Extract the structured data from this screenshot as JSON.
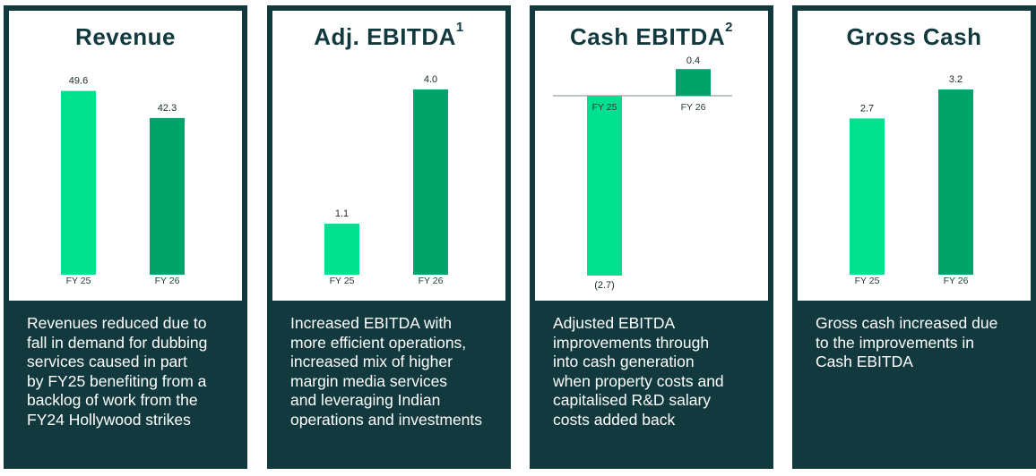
{
  "colors": {
    "panel": "#123a3e",
    "fy25": "#00e08e",
    "fy26": "#00a36a",
    "zero_line": "#7a8a8c"
  },
  "chart_data": [
    {
      "type": "bar",
      "title": "Revenue",
      "superscript": "",
      "categories": [
        "FY 25",
        "FY 26"
      ],
      "values": [
        49.6,
        42.3
      ],
      "value_labels": [
        "49.6",
        "42.3"
      ],
      "ylim": [
        0,
        50
      ],
      "zero_line": false,
      "description": "Revenues reduced due to\nfall in demand for dubbing\nservices caused in part\nby FY25 benefiting from a\nbacklog of work from the\nFY24 Hollywood strikes"
    },
    {
      "type": "bar",
      "title": "Adj. EBITDA",
      "superscript": "1",
      "categories": [
        "FY 25",
        "FY 26"
      ],
      "values": [
        1.1,
        4.0
      ],
      "value_labels": [
        "1.1",
        "4.0"
      ],
      "ylim": [
        0,
        4.0
      ],
      "zero_line": false,
      "description": "Increased EBITDA with\nmore efficient operations,\nincreased mix of higher\nmargin media services\nand leveraging Indian\noperations and investments"
    },
    {
      "type": "bar",
      "title": "Cash EBITDA",
      "superscript": "2",
      "categories": [
        "FY 25",
        "FY 26"
      ],
      "values": [
        -2.7,
        0.4
      ],
      "value_labels": [
        "(2.7)",
        "0.4"
      ],
      "ylim": [
        -2.7,
        0.4
      ],
      "zero_line": true,
      "description": "Adjusted EBITDA\nimprovements through\ninto cash generation\nwhen property costs and\ncapitalised R&D salary\ncosts added back"
    },
    {
      "type": "bar",
      "title": "Gross Cash",
      "superscript": "",
      "categories": [
        "FY 25",
        "FY 26"
      ],
      "values": [
        2.7,
        3.2
      ],
      "value_labels": [
        "2.7",
        "3.2"
      ],
      "ylim": [
        0,
        3.2
      ],
      "zero_line": false,
      "description": "Gross cash increased due\nto the improvements in\nCash EBITDA"
    }
  ]
}
